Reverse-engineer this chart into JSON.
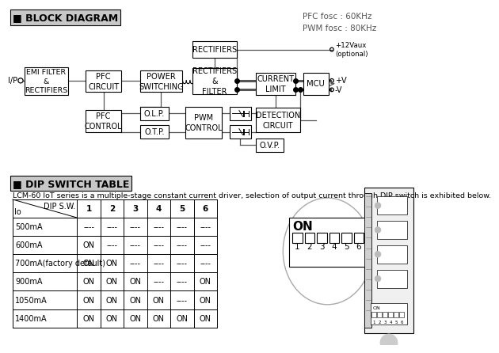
{
  "bg_color": "#ffffff",
  "title_block": "■ BLOCK DIAGRAM",
  "title_dip": "■ DIP SWITCH TABLE",
  "pfc_text": "PFC fosc : 60KHz\nPWM fosc : 80KHz",
  "dip_description": "LCM-60 IoT series is a multiple-stage constant current driver, selection of output current through DIP switch is exhibited below.",
  "table_rows": [
    [
      "500mA",
      "----",
      "----",
      "----",
      "----",
      "----",
      "----"
    ],
    [
      "600mA",
      "ON",
      "----",
      "----",
      "----",
      "----",
      "----"
    ],
    [
      "700mA(factory default)",
      "ON",
      "ON",
      "----",
      "----",
      "----",
      "----"
    ],
    [
      "900mA",
      "ON",
      "ON",
      "ON",
      "----",
      "----",
      "ON"
    ],
    [
      "1050mA",
      "ON",
      "ON",
      "ON",
      "ON",
      "----",
      "ON"
    ],
    [
      "1400mA",
      "ON",
      "ON",
      "ON",
      "ON",
      "ON",
      "ON"
    ]
  ]
}
